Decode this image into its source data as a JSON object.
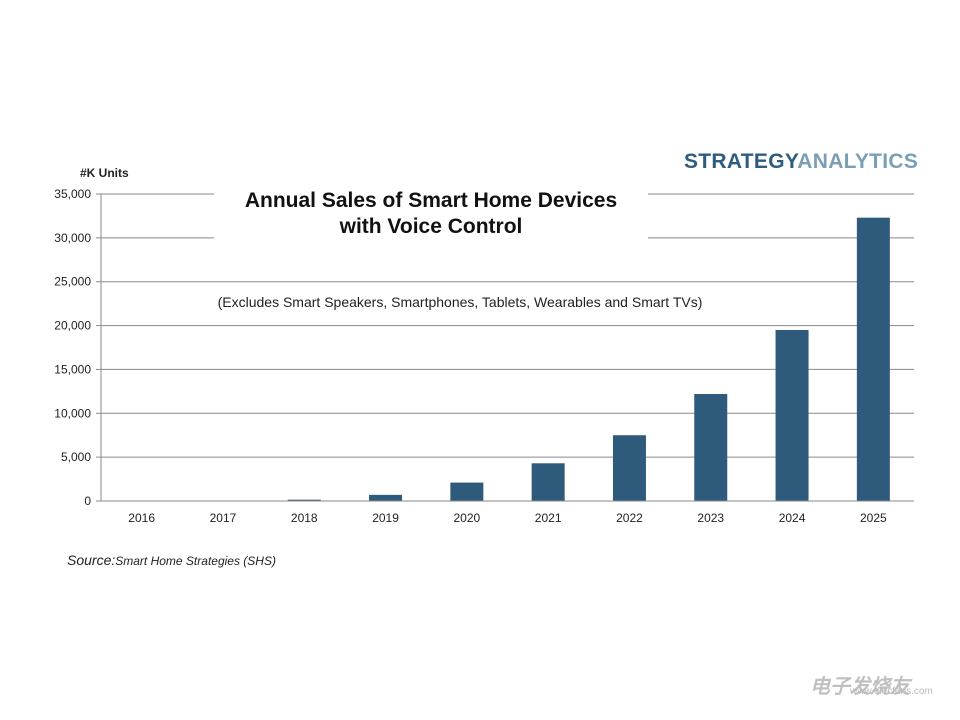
{
  "brand": {
    "part1": "STRATEGY",
    "part2": "ANALYTICS"
  },
  "watermark": {
    "main": "电子发烧友",
    "url": "www.elecfans.com"
  },
  "source": {
    "prefix": "Source:",
    "text": "Smart Home Strategies (SHS)"
  },
  "colors": {
    "bar": "#2e5a7c",
    "grid": "#8a8a8a",
    "axis": "#8a8a8a"
  },
  "chart_data": {
    "type": "bar",
    "title_line1": "Annual Sales of Smart Home Devices",
    "title_line2": "with Voice Control",
    "subtitle": "(Excludes Smart Speakers, Smartphones, Tablets, Wearables and Smart TVs)",
    "ylabel": "#K Units",
    "xlabel": "",
    "categories": [
      "2016",
      "2017",
      "2018",
      "2019",
      "2020",
      "2021",
      "2022",
      "2023",
      "2024",
      "2025"
    ],
    "values": [
      10,
      30,
      150,
      700,
      2100,
      4300,
      7500,
      12200,
      19500,
      32300
    ],
    "ylim": [
      0,
      35000
    ],
    "yticks": [
      0,
      5000,
      10000,
      15000,
      20000,
      25000,
      30000,
      35000
    ],
    "ytick_labels": [
      "0",
      "5,000",
      "10,000",
      "15,000",
      "20,000",
      "25,000",
      "30,000",
      "35,000"
    ],
    "grid": true,
    "legend": "none"
  }
}
